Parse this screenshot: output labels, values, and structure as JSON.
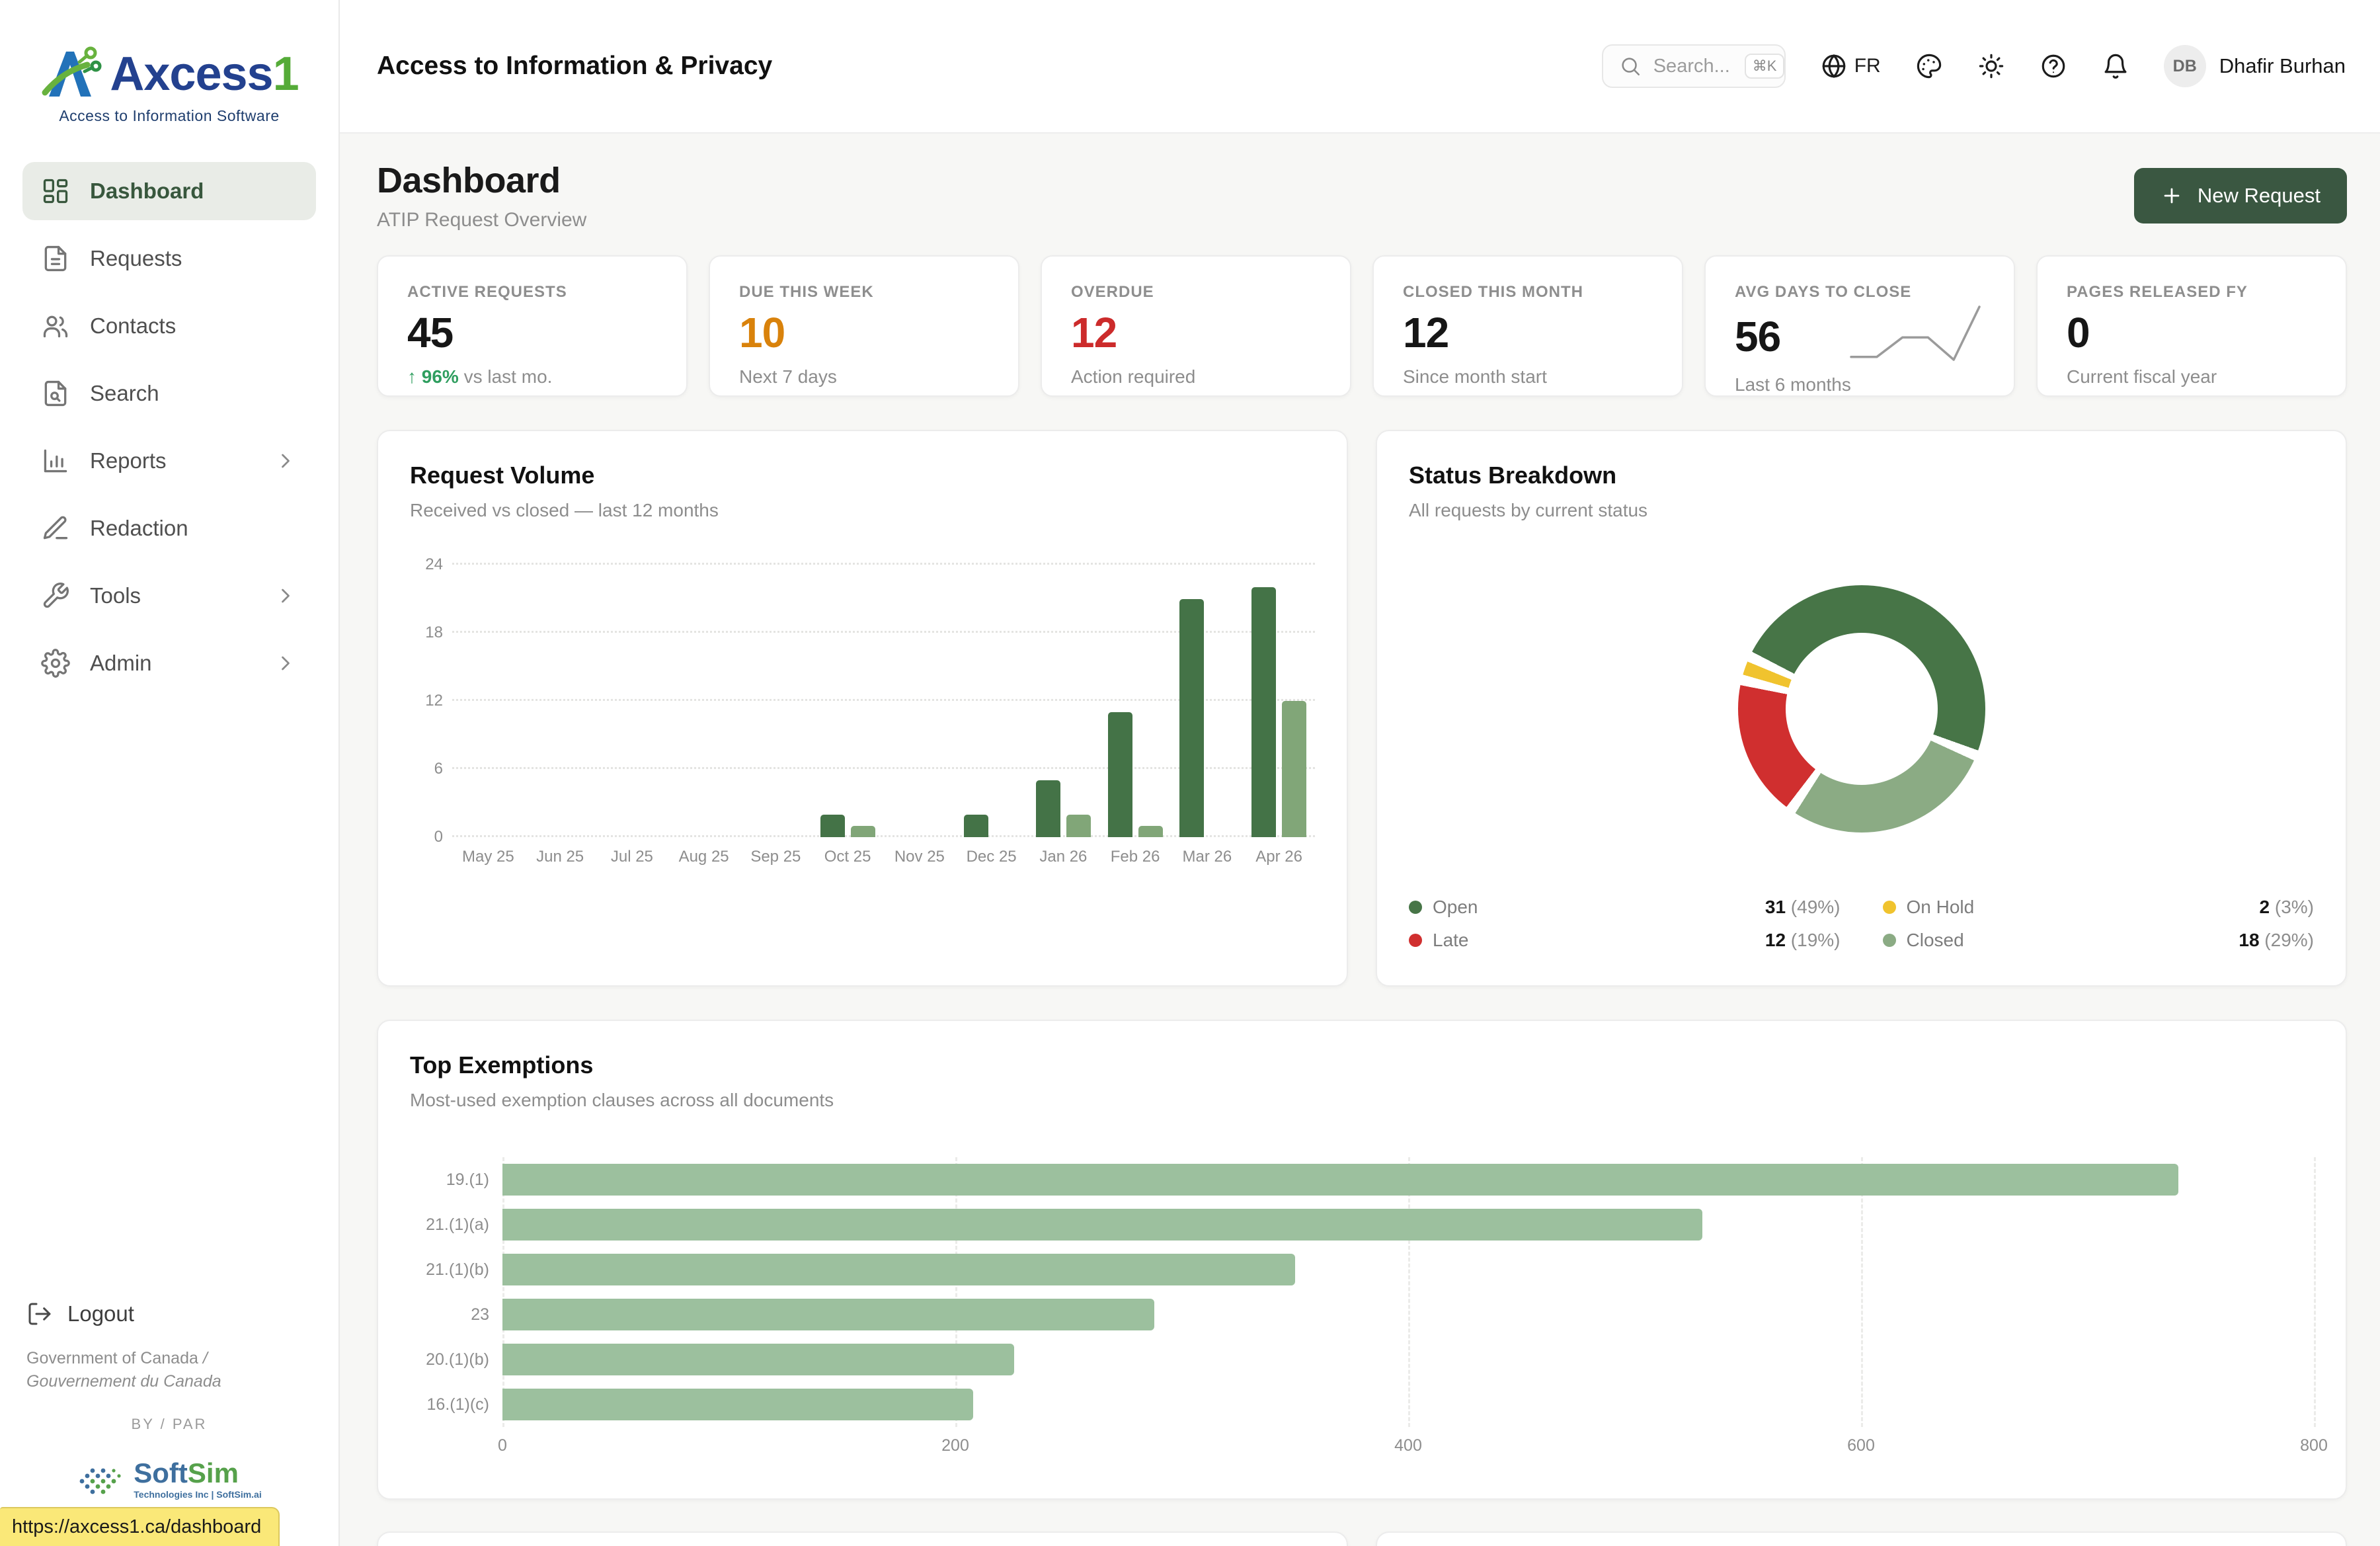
{
  "brand": {
    "name_primary": "Axcess",
    "name_accent": "1",
    "tagline": "Access to Information Software"
  },
  "header": {
    "app_title": "Access to Information & Privacy",
    "search_placeholder": "Search...",
    "search_shortcut": "⌘K",
    "language": "FR",
    "user_initials": "DB",
    "user_name": "Dhafir Burhan"
  },
  "page": {
    "title": "Dashboard",
    "subtitle": "ATIP Request Overview",
    "new_request_label": "New Request"
  },
  "sidebar": {
    "items": [
      {
        "label": "Dashboard",
        "icon": "dashboard",
        "active": true,
        "chevron": false
      },
      {
        "label": "Requests",
        "icon": "file-text",
        "active": false,
        "chevron": false
      },
      {
        "label": "Contacts",
        "icon": "users",
        "active": false,
        "chevron": false
      },
      {
        "label": "Search",
        "icon": "file-search",
        "active": false,
        "chevron": false
      },
      {
        "label": "Reports",
        "icon": "bar-chart",
        "active": false,
        "chevron": true
      },
      {
        "label": "Redaction",
        "icon": "pen-line",
        "active": false,
        "chevron": false
      },
      {
        "label": "Tools",
        "icon": "wrench",
        "active": false,
        "chevron": true
      },
      {
        "label": "Admin",
        "icon": "gear",
        "active": false,
        "chevron": true
      }
    ],
    "logout_label": "Logout",
    "footer_org_en": "Government of Canada",
    "footer_org_sep": " / ",
    "footer_org_fr": "Gouvernement du Canada",
    "footer_by": "BY / PAR",
    "footer_brand_soft": "Soft",
    "footer_brand_sim": "Sim",
    "footer_brand_tagline": "Technologies Inc | SoftSim.ai"
  },
  "status_bar": {
    "url": "https://axcess1.ca/dashboard"
  },
  "kpis": [
    {
      "label": "ACTIVE REQUESTS",
      "value": "45",
      "value_color": "#161616",
      "trend": "↑ 96%",
      "trend_color": "#2f9e5f",
      "sub": "vs last mo."
    },
    {
      "label": "DUE THIS WEEK",
      "value": "10",
      "value_color": "#d9820b",
      "trend": "",
      "trend_color": "",
      "sub": "Next 7 days"
    },
    {
      "label": "OVERDUE",
      "value": "12",
      "value_color": "#cc2b2b",
      "trend": "",
      "trend_color": "",
      "sub": "Action required"
    },
    {
      "label": "CLOSED THIS MONTH",
      "value": "12",
      "value_color": "#161616",
      "trend": "",
      "trend_color": "",
      "sub": "Since month start"
    },
    {
      "label": "AVG DAYS TO CLOSE",
      "value": "56",
      "value_color": "#161616",
      "trend": "",
      "trend_color": "",
      "sub": "Last 6 months",
      "sparkline": [
        20,
        20,
        34,
        34,
        18,
        56
      ],
      "sparkline_color": "#9b9b9b"
    },
    {
      "label": "PAGES RELEASED FY",
      "value": "0",
      "value_color": "#161616",
      "trend": "",
      "trend_color": "",
      "sub": "Current fiscal year"
    }
  ],
  "chart_data": [
    {
      "id": "request_volume",
      "type": "bar",
      "title": "Request Volume",
      "subtitle": "Received vs closed — last 12 months",
      "categories": [
        "May 25",
        "Jun 25",
        "Jul 25",
        "Aug 25",
        "Sep 25",
        "Oct 25",
        "Nov 25",
        "Dec 25",
        "Jan 26",
        "Feb 26",
        "Mar 26",
        "Apr 26"
      ],
      "series": [
        {
          "name": "Received",
          "color": "#447347",
          "values": [
            0,
            0,
            0,
            0,
            0,
            2,
            0,
            2,
            5,
            11,
            21,
            22
          ]
        },
        {
          "name": "Closed",
          "color": "#81a678",
          "values": [
            0,
            0,
            0,
            0,
            0,
            1,
            0,
            0,
            2,
            1,
            0,
            12
          ]
        }
      ],
      "ylim": [
        0,
        24
      ],
      "yticks": [
        0,
        6,
        12,
        18,
        24
      ],
      "grid": "dotted-horizontal",
      "legend": "none"
    },
    {
      "id": "status_breakdown",
      "type": "pie",
      "title": "Status Breakdown",
      "subtitle": "All requests by current status",
      "slices": [
        {
          "label": "Open",
          "value": 31,
          "pct": "49%",
          "color": "#477547"
        },
        {
          "label": "On Hold",
          "value": 2,
          "pct": "3%",
          "color": "#f0c32e"
        },
        {
          "label": "Late",
          "value": 12,
          "pct": "19%",
          "color": "#d02f2f"
        },
        {
          "label": "Closed",
          "value": 18,
          "pct": "29%",
          "color": "#8bab84"
        }
      ],
      "donut_draw_order": [
        0,
        3,
        2,
        1
      ],
      "start_angle": 295,
      "legend_position": "bottom"
    },
    {
      "id": "top_exemptions",
      "type": "bar-horizontal",
      "title": "Top Exemptions",
      "subtitle": "Most-used exemption clauses across all documents",
      "categories": [
        "19.(1)",
        "21.(1)(a)",
        "21.(1)(b)",
        "23",
        "20.(1)(b)",
        "16.(1)(c)"
      ],
      "values": [
        740,
        530,
        350,
        288,
        226,
        208
      ],
      "color": "#9cc09e",
      "xlim": [
        0,
        800
      ],
      "xticks": [
        0,
        200,
        400,
        600,
        800
      ],
      "grid": "dashed-vertical"
    }
  ]
}
